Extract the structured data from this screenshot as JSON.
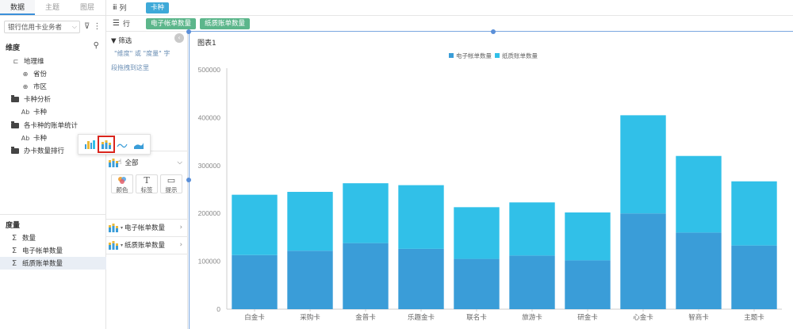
{
  "left_panel": {
    "tabs": [
      "数据",
      "主题",
      "图层"
    ],
    "dataset": "银行信用卡业务者",
    "dimension_title": "维度",
    "dimensions": [
      {
        "label": "地理维",
        "icon": "hierarchy-icon"
      },
      {
        "label": "省份",
        "icon": "globe-icon"
      },
      {
        "label": "市区",
        "icon": "globe-icon"
      },
      {
        "label": "卡种分析",
        "icon": "folder-icon"
      },
      {
        "label": "卡种",
        "icon": "text-field-icon"
      },
      {
        "label": "各卡种的账单统计",
        "icon": "folder-icon"
      },
      {
        "label": "卡种",
        "icon": "text-field-icon"
      },
      {
        "label": "办卡数量排行",
        "icon": "folder-icon"
      }
    ],
    "measure_title": "度量",
    "measures": [
      "数量",
      "电子帐单数量",
      "纸质账单数量"
    ],
    "text_field_mark": "Ab"
  },
  "shelves": {
    "columns_label": "列",
    "rows_label": "行",
    "columns_fields": [
      "卡种"
    ],
    "rows_fields": [
      "电子帐单数量",
      "纸质账单数量"
    ]
  },
  "config_panel": {
    "filter_label": "筛选",
    "filter_hint": "\"维度\" 或 \"度量\" 字",
    "drop_hint": "段拖拽到这里",
    "all_label": "全部",
    "props": [
      {
        "label": "颜色",
        "icon": "palette-icon"
      },
      {
        "label": "标签",
        "icon": "text-icon",
        "glyph": "T"
      },
      {
        "label": "提示",
        "icon": "tooltip-icon"
      }
    ],
    "measure_rows": [
      "电子帐单数量",
      "纸质账单数量"
    ]
  },
  "chart_type_popup": {
    "icons": [
      "bar-chart-icon",
      "stacked-bar-chart-icon",
      "line-chart-icon",
      "area-chart-icon"
    ],
    "selected_index": 1
  },
  "colors": {
    "accent": "#3b8fd9",
    "series_1": "#3a9dd8",
    "series_2": "#31c0e8",
    "pill_blue": "#3ea9d8",
    "pill_green": "#5cb68b",
    "highlight": "#d9251d"
  },
  "chart_title": "图表1",
  "chart_data": {
    "type": "bar",
    "stacked": true,
    "categories": [
      "白金卡",
      "采购卡",
      "金普卡",
      "乐趣金卡",
      "联名卡",
      "旅游卡",
      "研金卡",
      "心金卡",
      "智商卡",
      "主题卡"
    ],
    "series": [
      {
        "name": "电子帐单数量",
        "values": [
          113000,
          122000,
          138000,
          126000,
          105000,
          112000,
          102000,
          200000,
          160000,
          133000
        ]
      },
      {
        "name": "纸质账单数量",
        "values": [
          126000,
          123000,
          125000,
          133000,
          108000,
          111000,
          100000,
          205000,
          160000,
          134000
        ]
      }
    ],
    "ylim": [
      0,
      500000
    ],
    "yticks": [
      "0",
      "100000",
      "200000",
      "300000",
      "400000",
      "500000"
    ],
    "legend": "top-center",
    "grid": false
  }
}
